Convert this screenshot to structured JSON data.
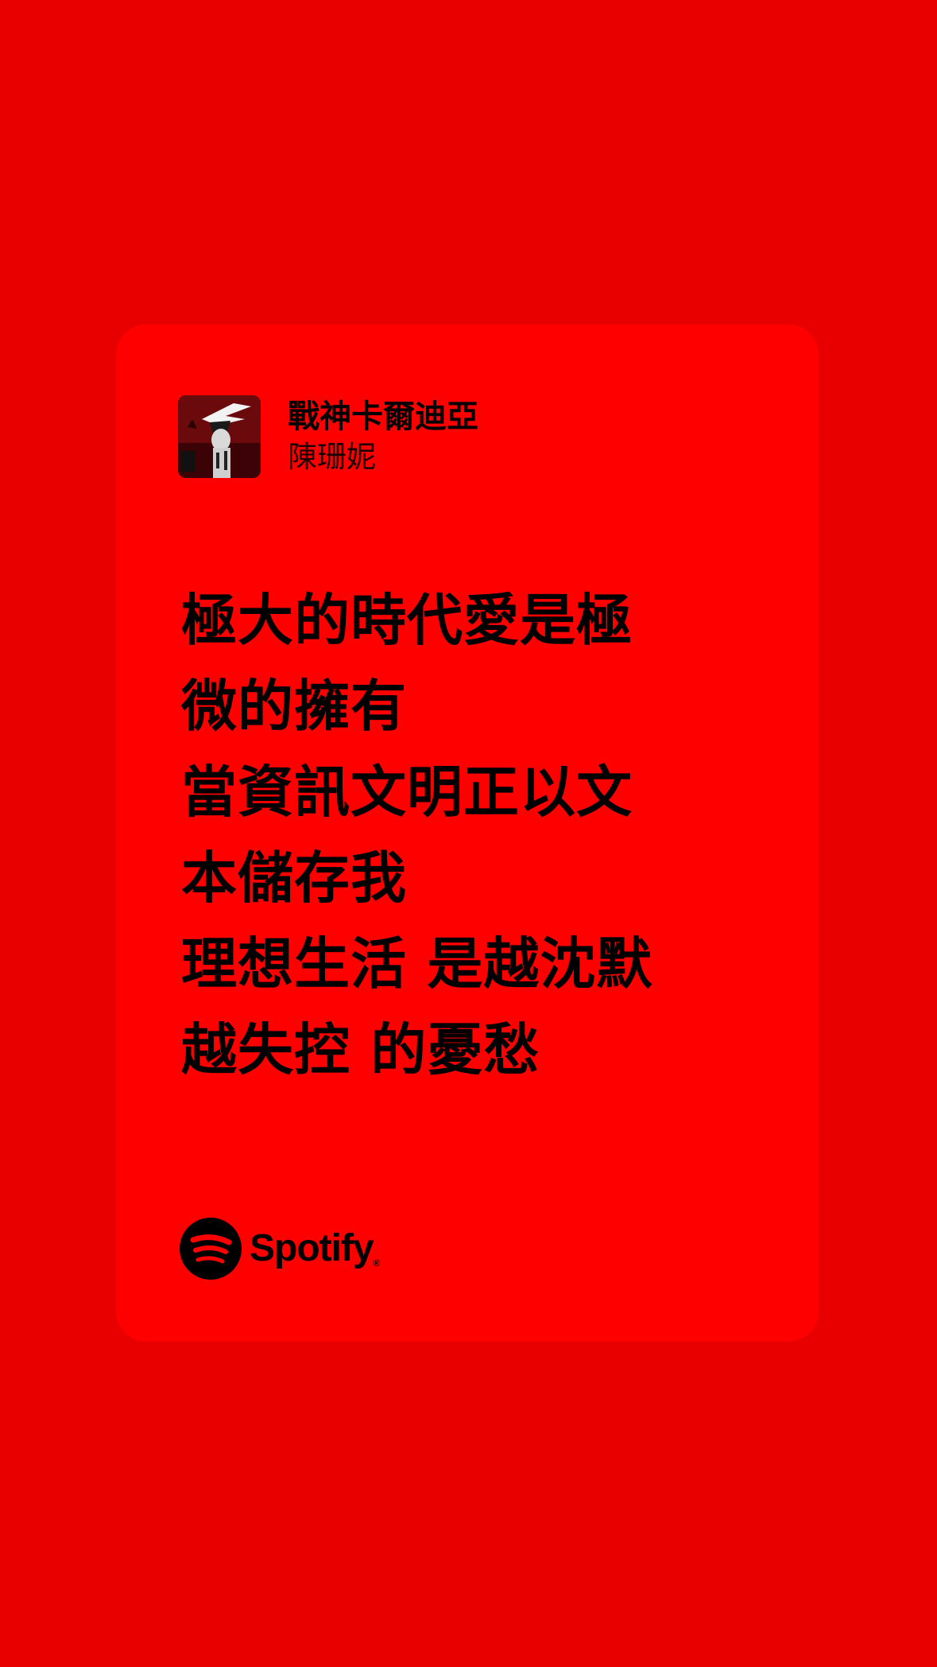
{
  "colors": {
    "background": "#e80000",
    "card": "#ff0000",
    "text": "#000000"
  },
  "song": {
    "title": "戰神卡爾迪亞",
    "artist": "陳珊妮",
    "album_art_icon": "album-cover"
  },
  "lyrics": [
    "極大的時代愛是極",
    "微的擁有",
    "當資訊文明正以文",
    "本儲存我",
    "理想生活 是越沈默",
    "越失控 的憂愁"
  ],
  "brand": {
    "icon": "spotify-logo-icon",
    "name": "Spotify",
    "reg_mark": "®"
  }
}
